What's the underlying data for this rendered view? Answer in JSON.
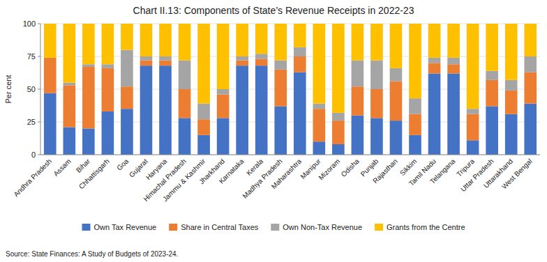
{
  "chart_data": {
    "type": "bar",
    "stacked": true,
    "title": "Chart II.13: Components of State’s Revenue Receipts in 2022-23",
    "ylabel": "Per cent",
    "source": "Source: State Finances: A Study of Budgets of 2023-24.",
    "categories": [
      "Andhra Pradesh",
      "Assam",
      "Bihar",
      "Chhattisgarh",
      "Goa",
      "Gujarat",
      "Haryana",
      "Himachal Pradesh",
      "Jammu & Kashmir",
      "Jharkhand",
      "Karnataka",
      "Kerala",
      "Madhya Pradesh",
      "Maharashtra",
      "Manipur",
      "Mizoram",
      "Odisha",
      "Punjab",
      "Rajasthan",
      "Sikkim",
      "Tamil Nadu",
      "Telangana",
      "Tripura",
      "Uttar Pradesh",
      "Uttarakhand",
      "West Bengal"
    ],
    "series": [
      {
        "name": "Own Tax Revenue",
        "color": "#4472C4",
        "values": [
          47,
          21,
          20,
          33,
          35,
          68,
          68,
          28,
          15,
          28,
          68,
          68,
          37,
          63,
          10,
          8,
          30,
          28,
          26,
          15,
          62,
          62,
          11,
          37,
          31,
          39
        ]
      },
      {
        "name": "Share in Central Taxes",
        "color": "#ED7D31",
        "values": [
          27,
          32,
          47,
          33,
          17,
          4,
          4,
          22,
          12,
          18,
          4,
          5,
          28,
          12,
          25,
          18,
          22,
          22,
          30,
          16,
          8,
          7,
          20,
          20,
          18,
          24
        ]
      },
      {
        "name": "Own Non-Tax Revenue",
        "color": "#A5A5A5",
        "values": [
          0,
          2,
          2,
          3,
          28,
          3,
          3,
          22,
          12,
          4,
          3,
          4,
          7,
          7,
          4,
          6,
          20,
          22,
          10,
          12,
          4,
          5,
          4,
          7,
          8,
          12
        ]
      },
      {
        "name": "Grants from the Centre",
        "color": "#FFC000",
        "values": [
          26,
          45,
          31,
          31,
          20,
          25,
          25,
          28,
          61,
          50,
          25,
          23,
          28,
          18,
          61,
          68,
          28,
          28,
          34,
          57,
          26,
          26,
          65,
          36,
          43,
          25
        ]
      }
    ],
    "ylim": [
      0,
      100
    ],
    "yticks": [
      0,
      25,
      50,
      75,
      100
    ],
    "grid": true,
    "legend": "bottom"
  }
}
